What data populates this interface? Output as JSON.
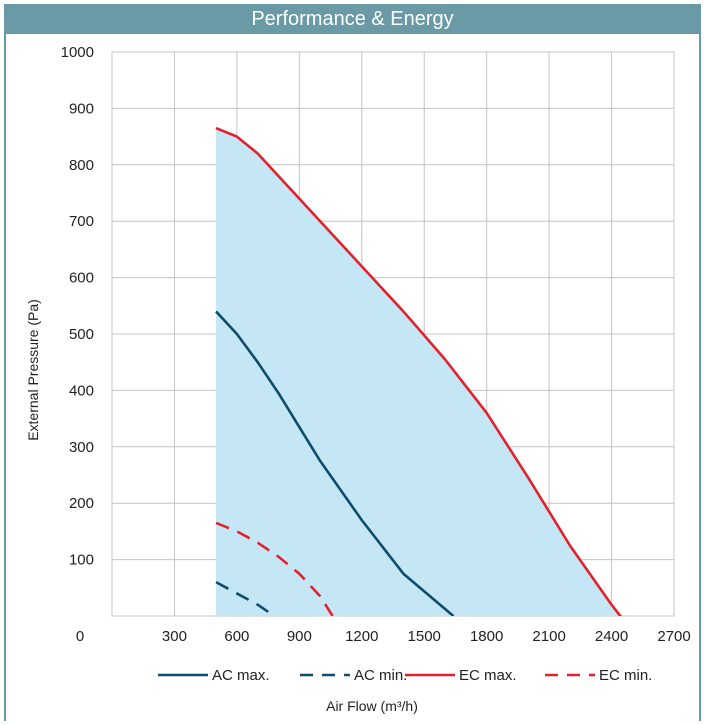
{
  "chart_data": {
    "type": "line",
    "title": "Performance & Energy",
    "xlabel": "Air Flow (m³/h)",
    "ylabel": "External Pressure (Pa)",
    "xlim": [
      0,
      2700
    ],
    "ylim": [
      0,
      1000
    ],
    "x_ticks": [
      "0",
      "300",
      "600",
      "900",
      "1200",
      "1500",
      "1800",
      "2100",
      "2400",
      "2700"
    ],
    "y_ticks": [
      "100",
      "200",
      "300",
      "400",
      "500",
      "600",
      "700",
      "800",
      "900",
      "1000"
    ],
    "grid": true,
    "legend": "bottom",
    "shaded_region": {
      "color": "#c5e6f4",
      "upper_series": "EC max.",
      "lower_bound": 0,
      "x_min": 500
    },
    "series": [
      {
        "name": "AC max.",
        "style": "solid",
        "color": "#0e4c6e",
        "x": [
          500,
          600,
          700,
          800,
          900,
          1000,
          1200,
          1400,
          1640
        ],
        "y": [
          540,
          500,
          450,
          395,
          335,
          275,
          170,
          75,
          0
        ]
      },
      {
        "name": "AC min.",
        "style": "dashed",
        "color": "#0e4c6e",
        "x": [
          500,
          600,
          700,
          780
        ],
        "y": [
          60,
          40,
          20,
          0
        ]
      },
      {
        "name": "EC max.",
        "style": "solid",
        "color": "#e1212b",
        "x": [
          500,
          600,
          700,
          800,
          900,
          1000,
          1200,
          1400,
          1600,
          1800,
          2000,
          2200,
          2400,
          2610
        ],
        "y": [
          865,
          850,
          820,
          780,
          740,
          700,
          620,
          540,
          455,
          360,
          245,
          125,
          20,
          -80
        ]
      },
      {
        "name": "EC min.",
        "style": "dashed",
        "color": "#e1212b",
        "x": [
          500,
          600,
          700,
          800,
          900,
          1000,
          1060
        ],
        "y": [
          165,
          150,
          130,
          105,
          75,
          35,
          0
        ]
      }
    ]
  }
}
